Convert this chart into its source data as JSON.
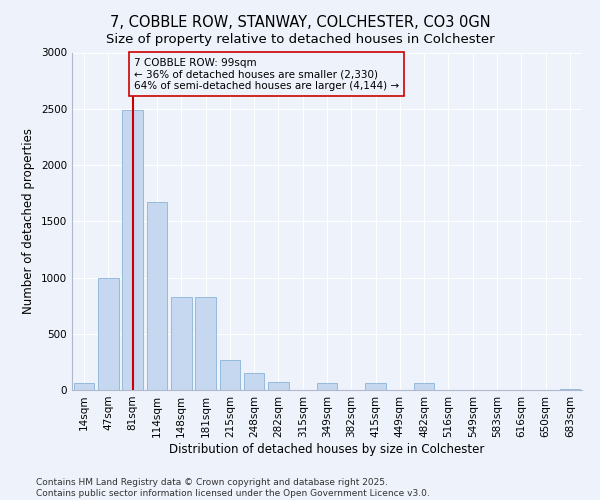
{
  "title_line1": "7, COBBLE ROW, STANWAY, COLCHESTER, CO3 0GN",
  "title_line2": "Size of property relative to detached houses in Colchester",
  "xlabel": "Distribution of detached houses by size in Colchester",
  "ylabel": "Number of detached properties",
  "bar_color": "#c5d8ef",
  "bar_edge_color": "#8ab4d8",
  "background_color": "#eef2fb",
  "grid_color": "#ffffff",
  "annotation_line_color": "#cc0000",
  "annotation_box_color": "#cc0000",
  "categories": [
    "14sqm",
    "47sqm",
    "81sqm",
    "114sqm",
    "148sqm",
    "181sqm",
    "215sqm",
    "248sqm",
    "282sqm",
    "315sqm",
    "349sqm",
    "382sqm",
    "415sqm",
    "449sqm",
    "482sqm",
    "516sqm",
    "549sqm",
    "583sqm",
    "616sqm",
    "650sqm",
    "683sqm"
  ],
  "values": [
    60,
    1000,
    2490,
    1670,
    830,
    830,
    270,
    150,
    70,
    0,
    60,
    0,
    60,
    0,
    60,
    0,
    0,
    0,
    0,
    0,
    10
  ],
  "ylim": [
    0,
    3000
  ],
  "yticks": [
    0,
    500,
    1000,
    1500,
    2000,
    2500,
    3000
  ],
  "vline_x": 2,
  "annotation_text_line1": "7 COBBLE ROW: 99sqm",
  "annotation_text_line2": "← 36% of detached houses are smaller (2,330)",
  "annotation_text_line3": "64% of semi-detached houses are larger (4,144) →",
  "footnote1": "Contains HM Land Registry data © Crown copyright and database right 2025.",
  "footnote2": "Contains public sector information licensed under the Open Government Licence v3.0.",
  "title_fontsize": 10.5,
  "subtitle_fontsize": 9.5,
  "axis_label_fontsize": 8.5,
  "tick_fontsize": 7.5,
  "annotation_fontsize": 7.5,
  "footnote_fontsize": 6.5
}
